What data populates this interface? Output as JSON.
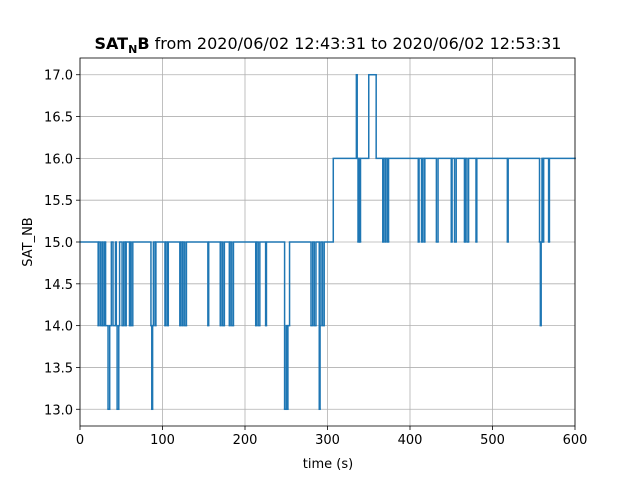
{
  "chart_data": {
    "type": "step",
    "title": [
      "SAT",
      "N",
      "B",
      " from 2020/06/02 12:43:31 to 2020/06/02 12:53:31"
    ],
    "xlabel": "time (s)",
    "ylabel": "SAT_NB",
    "color": "#1f77b4",
    "grid": true,
    "xlim": [
      0,
      600
    ],
    "xticks": [
      0,
      100,
      200,
      300,
      400,
      500,
      600
    ],
    "ylim": [
      12.8,
      17.2
    ],
    "yticks": [
      {
        "value": 13,
        "label": "13.0"
      },
      13.5,
      {
        "value": 14,
        "label": "14.0"
      },
      14.5,
      {
        "value": 15,
        "label": "15.0"
      },
      15.5,
      {
        "value": 16,
        "label": "16.0"
      },
      16.5,
      {
        "value": 17,
        "label": "17.0"
      }
    ],
    "x": [
      0,
      22,
      23,
      25,
      27,
      28,
      30,
      31,
      34,
      36,
      38,
      40,
      43,
      44,
      45,
      47,
      48,
      51,
      53,
      55,
      56,
      60,
      61,
      62,
      64,
      86,
      87,
      88,
      89,
      91,
      92,
      103,
      104,
      106,
      107,
      121,
      122,
      124,
      125,
      127,
      129,
      155,
      156,
      170,
      171,
      173,
      175,
      181,
      182,
      184,
      186,
      213,
      214,
      216,
      218,
      225,
      226,
      248,
      250,
      251,
      252,
      254,
      280,
      282,
      284,
      286,
      290,
      291,
      292,
      294,
      296,
      307,
      335,
      336,
      337,
      338,
      339,
      340,
      350,
      359,
      367,
      368,
      370,
      371,
      373,
      374,
      410,
      411,
      414,
      415,
      417,
      418,
      432,
      434,
      450,
      451,
      454,
      456,
      466,
      467,
      469,
      471,
      480,
      481,
      518,
      519,
      557,
      558,
      559,
      560,
      561,
      562,
      568,
      569,
      600
    ],
    "values": [
      15,
      14,
      15,
      14,
      15,
      14,
      15,
      14,
      13,
      14,
      15,
      14,
      15,
      14,
      13,
      14,
      15,
      14,
      15,
      14,
      15,
      14,
      15,
      14,
      15,
      14,
      13,
      14,
      15,
      14,
      15,
      14,
      15,
      14,
      15,
      14,
      15,
      14,
      15,
      14,
      15,
      14,
      15,
      14,
      15,
      14,
      15,
      14,
      15,
      14,
      15,
      14,
      15,
      14,
      15,
      14,
      15,
      13,
      14,
      13,
      14,
      15,
      14,
      15,
      14,
      15,
      13,
      14,
      15,
      14,
      15,
      16,
      17,
      16,
      15,
      16,
      15,
      16,
      17,
      16,
      15,
      16,
      15,
      16,
      15,
      16,
      15,
      16,
      15,
      16,
      15,
      16,
      15,
      16,
      15,
      16,
      15,
      16,
      15,
      16,
      15,
      16,
      15,
      16,
      15,
      16,
      15,
      14,
      15,
      16,
      15,
      16,
      15,
      16,
      16
    ]
  }
}
